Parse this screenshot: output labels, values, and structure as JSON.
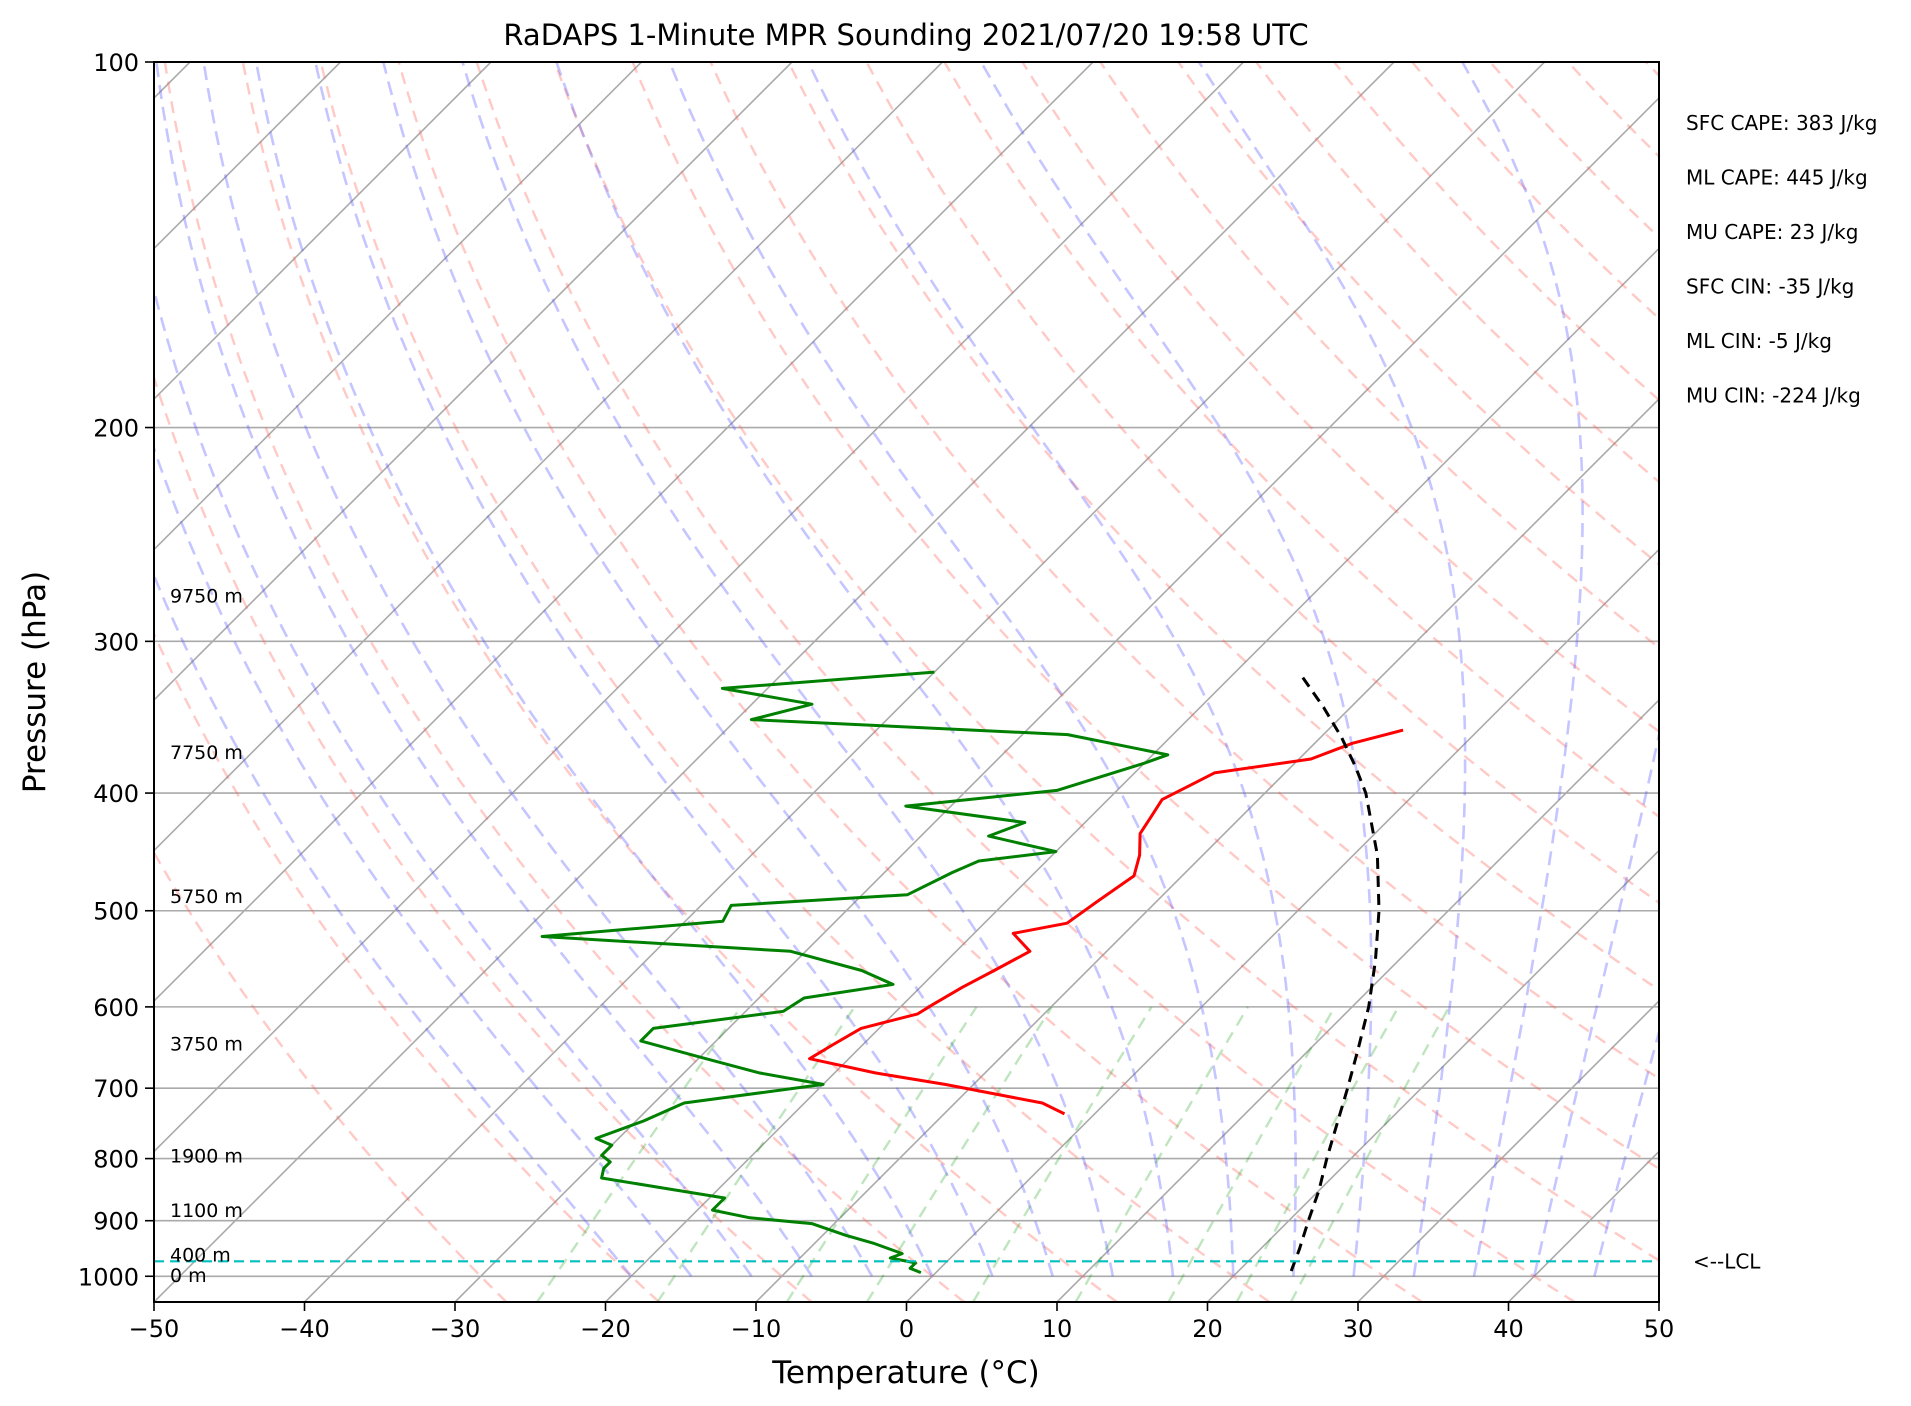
{
  "chart_data": {
    "type": "line",
    "title": "RaDAPS 1-Minute MPR Sounding 2021/07/20 19:58 UTC",
    "xlabel": "Temperature (°C)",
    "ylabel": "Pressure (hPa)",
    "xlim": [
      -50,
      50
    ],
    "ylim": [
      1050,
      100
    ],
    "y_scale": "log",
    "x_ticks": [
      -50,
      -40,
      -30,
      -20,
      -10,
      0,
      10,
      20,
      30,
      40,
      50
    ],
    "y_ticks": [
      100,
      200,
      300,
      400,
      500,
      600,
      700,
      800,
      900,
      1000
    ],
    "grid": true,
    "skew_deg": 45,
    "height_labels": [
      {
        "text": "9750 m",
        "pressure": 275
      },
      {
        "text": "7750 m",
        "pressure": 370
      },
      {
        "text": "5750 m",
        "pressure": 486
      },
      {
        "text": "3750 m",
        "pressure": 643
      },
      {
        "text": "1900 m",
        "pressure": 795
      },
      {
        "text": "1100 m",
        "pressure": 882
      },
      {
        "text": "400 m",
        "pressure": 960
      },
      {
        "text": "0 m",
        "pressure": 998
      }
    ],
    "stats": [
      "SFC CAPE: 383 J/kg",
      "ML CAPE: 445 J/kg",
      "MU CAPE: 23 J/kg",
      "SFC CIN: -35 J/kg",
      "ML CIN: -5 J/kg",
      "MU CIN: -224 J/kg"
    ],
    "lcl": {
      "pressure": 972,
      "label": "<--LCL"
    },
    "series": [
      {
        "color": "#ff0000",
        "points": [
          [
            355,
            -5.0
          ],
          [
            364,
            -7.5
          ],
          [
            375,
            -9.2
          ],
          [
            385,
            -14.7
          ],
          [
            392,
            -15.3
          ],
          [
            405,
            -16.4
          ],
          [
            418,
            -16.0
          ],
          [
            432,
            -15.6
          ],
          [
            450,
            -14.2
          ],
          [
            468,
            -13.2
          ],
          [
            490,
            -13.9
          ],
          [
            512,
            -14.5
          ],
          [
            522,
            -17.4
          ],
          [
            540,
            -15.1
          ],
          [
            560,
            -16.2
          ],
          [
            578,
            -17.2
          ],
          [
            597,
            -18.0
          ],
          [
            608,
            -18.4
          ],
          [
            625,
            -21.2
          ],
          [
            645,
            -22.0
          ],
          [
            662,
            -22.6
          ],
          [
            680,
            -17.3
          ],
          [
            695,
            -11.9
          ],
          [
            720,
            -4.2
          ],
          [
            735,
            -2.0
          ]
        ]
      },
      {
        "color": "#008000",
        "points": [
          [
            318,
            -40.0
          ],
          [
            328,
            -53.0
          ],
          [
            338,
            -46.0
          ],
          [
            348,
            -49.0
          ],
          [
            358,
            -27.0
          ],
          [
            372,
            -19.0
          ],
          [
            378,
            -20.0
          ],
          [
            398,
            -24.0
          ],
          [
            410,
            -33.0
          ],
          [
            423,
            -24.0
          ],
          [
            434,
            -25.5
          ],
          [
            447,
            -20.0
          ],
          [
            455,
            -24.5
          ],
          [
            465,
            -25.5
          ],
          [
            485,
            -27.0
          ],
          [
            495,
            -38.0
          ],
          [
            510,
            -37.5
          ],
          [
            525,
            -48.5
          ],
          [
            540,
            -31.0
          ],
          [
            560,
            -25.0
          ],
          [
            575,
            -22.0
          ],
          [
            590,
            -27.0
          ],
          [
            605,
            -27.5
          ],
          [
            625,
            -35.0
          ],
          [
            640,
            -35.0
          ],
          [
            660,
            -30.0
          ],
          [
            680,
            -25.0
          ],
          [
            695,
            -20.0
          ],
          [
            720,
            -28.0
          ],
          [
            745,
            -29.5
          ],
          [
            770,
            -31.5
          ],
          [
            780,
            -30.0
          ],
          [
            795,
            -30.0
          ],
          [
            805,
            -29.0
          ],
          [
            815,
            -29.0
          ],
          [
            830,
            -28.5
          ],
          [
            845,
            -24.0
          ],
          [
            862,
            -19.0
          ],
          [
            882,
            -19.0
          ],
          [
            895,
            -16.0
          ],
          [
            905,
            -11.5
          ],
          [
            925,
            -8.5
          ],
          [
            940,
            -6.0
          ],
          [
            958,
            -3.5
          ],
          [
            966,
            -4.0
          ],
          [
            975,
            -2.0
          ],
          [
            985,
            -2.0
          ],
          [
            993,
            -1.0
          ]
        ]
      },
      {
        "color": "#000000",
        "dashed": true,
        "points": [
          [
            990,
            23.5
          ],
          [
            950,
            22.6
          ],
          [
            900,
            21.3
          ],
          [
            850,
            20.0
          ],
          [
            800,
            18.4
          ],
          [
            750,
            16.8
          ],
          [
            700,
            15.1
          ],
          [
            650,
            13.2
          ],
          [
            600,
            11.1
          ],
          [
            550,
            8.5
          ],
          [
            500,
            5.4
          ],
          [
            450,
            1.6
          ],
          [
            400,
            -3.3
          ],
          [
            380,
            -5.8
          ],
          [
            360,
            -8.6
          ],
          [
            340,
            -11.8
          ],
          [
            320,
            -15.4
          ]
        ]
      }
    ]
  }
}
